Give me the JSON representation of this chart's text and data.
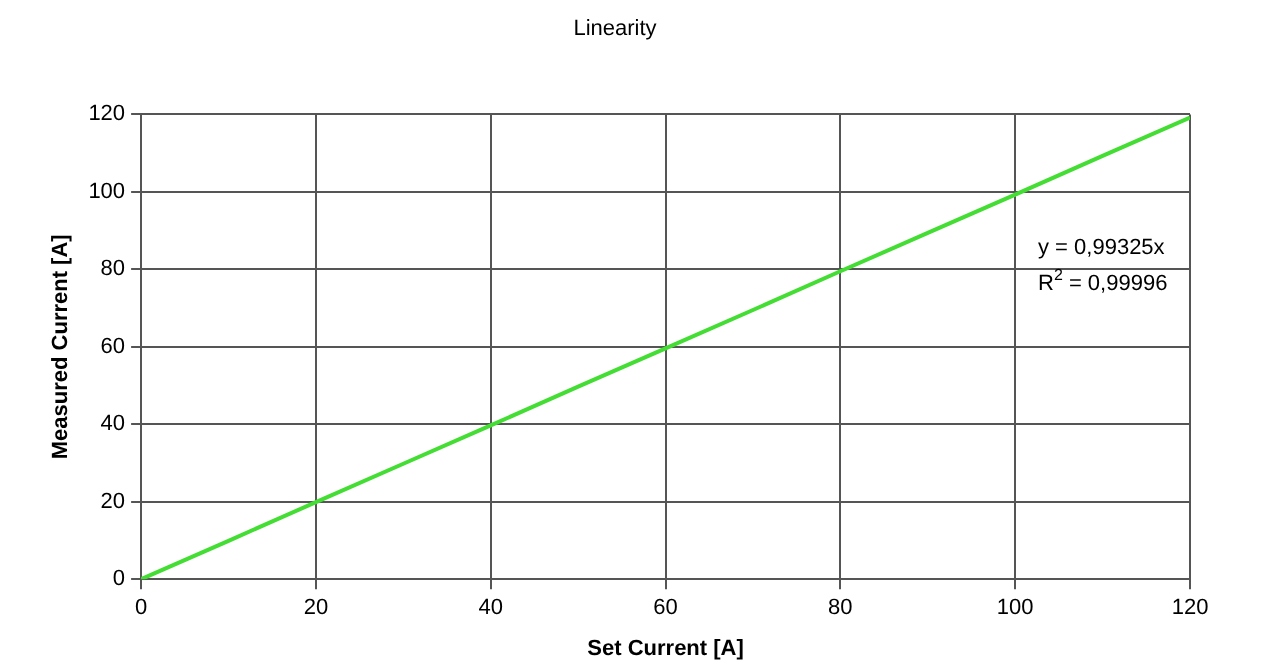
{
  "chart_data": {
    "type": "line",
    "title": "Linearity",
    "xlabel": "Set Current [A]",
    "ylabel": "Measured Current [A]",
    "x": [
      0,
      10,
      20,
      30,
      40,
      50,
      60,
      70,
      80,
      90,
      100,
      110,
      120
    ],
    "series": [
      {
        "color": "#44dd33",
        "values": [
          0,
          9.9,
          19.9,
          29.8,
          39.7,
          49.7,
          59.6,
          69.5,
          79.5,
          89.4,
          99.3,
          109.3,
          119.2
        ]
      }
    ],
    "xlim": [
      0,
      120
    ],
    "xticks": [
      0,
      20,
      40,
      60,
      80,
      100,
      120
    ],
    "ylim": [
      0,
      120
    ],
    "yticks": [
      0,
      20,
      40,
      60,
      80,
      100,
      120
    ],
    "grid": true,
    "legend": false,
    "marker": "none",
    "line_style": "solid",
    "annotations": [
      "y = 0,99325x",
      "R$^{2}$ = 0,99996"
    ]
  }
}
